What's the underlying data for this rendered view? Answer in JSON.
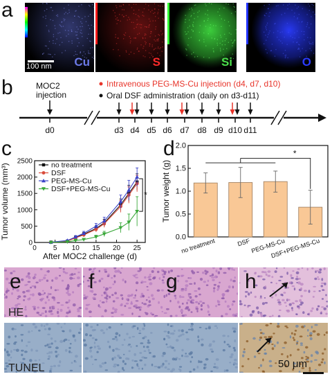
{
  "panel_labels": [
    "a",
    "b",
    "c",
    "d",
    "e",
    "f",
    "g",
    "h"
  ],
  "panel_a": {
    "scale_bar": "100 nm",
    "maps": [
      {
        "element": "Cu",
        "color": "#6b79e6"
      },
      {
        "element": "S",
        "color": "#ff2a2a"
      },
      {
        "element": "Si",
        "color": "#4ce04c"
      },
      {
        "element": "O",
        "color": "#2b3bff"
      }
    ]
  },
  "panel_b": {
    "injection_label": "MOC2\ninjection",
    "legend_iv": "Intravenous  PEG-MS-Cu injection (d4, d7, d10)",
    "legend_oral": "Oral DSF administration (daily on d3-d11)",
    "days": [
      "d0",
      "d3",
      "d4",
      "d5",
      "d6",
      "d7",
      "d8",
      "d9",
      "d10",
      "d11"
    ],
    "iv_days": [
      "d4",
      "d7",
      "d10"
    ],
    "colors": {
      "iv": "#e8342a",
      "oral": "#111111"
    }
  },
  "chart_data": [
    {
      "type": "line",
      "xlabel": "After MOC2 challenge (d)",
      "ylabel": "Tumor volume (mm³)",
      "xlim": [
        0,
        27
      ],
      "ylim": [
        0,
        2500
      ],
      "xticks": [
        0,
        5,
        10,
        15,
        20,
        25
      ],
      "yticks": [
        0,
        500,
        1000,
        1500,
        2000,
        2500
      ],
      "legend": "top-left",
      "significance": "*",
      "series": [
        {
          "name": "no treatment",
          "color": "#111111",
          "marker": "square",
          "x": [
            4,
            8,
            10,
            12,
            15,
            17,
            21,
            23,
            25
          ],
          "y": [
            10,
            40,
            150,
            250,
            430,
            600,
            1150,
            1500,
            1850
          ],
          "err": [
            5,
            20,
            40,
            60,
            80,
            110,
            180,
            250,
            250
          ]
        },
        {
          "name": "DSF",
          "color": "#d94a3a",
          "marker": "circle",
          "x": [
            4,
            8,
            10,
            12,
            15,
            17,
            21,
            23,
            25
          ],
          "y": [
            10,
            40,
            140,
            230,
            400,
            570,
            1100,
            1450,
            1800
          ],
          "err": [
            5,
            20,
            40,
            60,
            80,
            110,
            180,
            250,
            250
          ]
        },
        {
          "name": "PEG-MS-Cu",
          "color": "#3b44c8",
          "marker": "triangle",
          "x": [
            4,
            8,
            10,
            12,
            15,
            17,
            21,
            23,
            25
          ],
          "y": [
            10,
            60,
            170,
            280,
            500,
            660,
            1250,
            1600,
            2000
          ],
          "err": [
            5,
            20,
            40,
            60,
            80,
            110,
            200,
            300,
            280
          ]
        },
        {
          "name": "DSF+PEG-MS-Cu",
          "color": "#3aa83a",
          "marker": "triangle-down",
          "x": [
            4,
            8,
            10,
            12,
            15,
            17,
            21,
            23,
            25
          ],
          "y": [
            5,
            20,
            60,
            90,
            170,
            260,
            450,
            620,
            950
          ],
          "err": [
            5,
            10,
            20,
            30,
            50,
            80,
            150,
            250,
            450
          ]
        }
      ]
    },
    {
      "type": "bar",
      "xlabel": "",
      "ylabel": "Tumor weight (g)",
      "ylim": [
        0,
        2.0
      ],
      "yticks": [
        0.0,
        0.5,
        1.0,
        1.5,
        2.0
      ],
      "categories": [
        "no treatment",
        "DSF",
        "PEG-MS-Cu",
        "DSF+PEG-MS-Cu"
      ],
      "values": [
        1.18,
        1.19,
        1.21,
        0.65
      ],
      "errors": [
        0.22,
        0.33,
        0.23,
        0.37
      ],
      "bar_color": "#f9c896",
      "edge_color": "#9a7a5a",
      "significance": "*"
    }
  ],
  "panel_e_h": {
    "row_labels": [
      "HE",
      "TUNEL"
    ],
    "scale_bar": "50 μm",
    "he_color": "#d9a7d0",
    "tunel_color": "#98aec8",
    "tunel_positive_color": "#b48a55"
  }
}
